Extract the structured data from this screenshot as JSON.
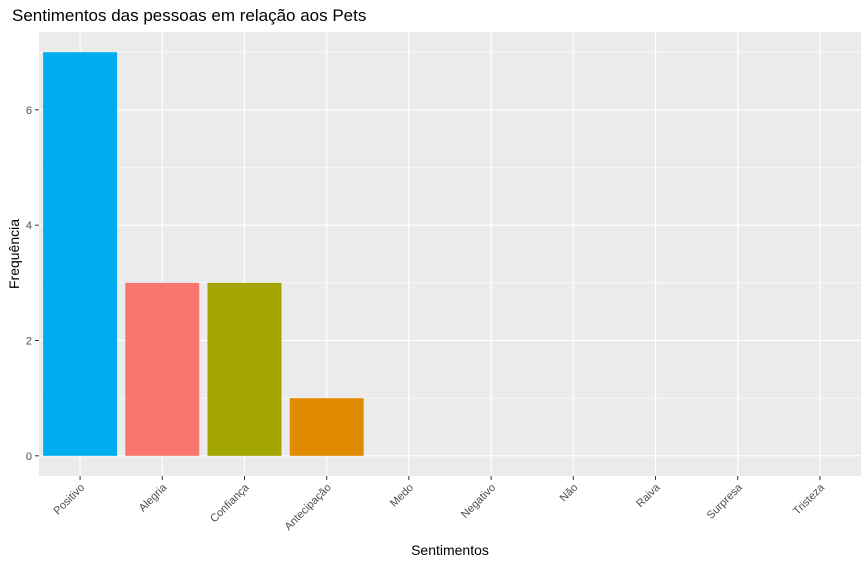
{
  "chart_data": {
    "type": "bar",
    "title": "Sentimentos das pessoas em relação aos Pets",
    "xlabel": "Sentimentos",
    "ylabel": "Frequência",
    "categories": [
      "Positivo",
      "Alegria",
      "Confiança",
      "Antecipação",
      "Medo",
      "Negativo",
      "Não",
      "Raiva",
      "Surpresa",
      "Tristeza"
    ],
    "values": [
      7,
      3,
      3,
      1,
      0,
      0,
      0,
      0,
      0,
      0
    ],
    "bar_colors": [
      "#00aeef",
      "#f8766d",
      "#a3a500",
      "#e08b00",
      "#ffffff",
      "#ffffff",
      "#ffffff",
      "#ffffff",
      "#ffffff",
      "#ffffff"
    ],
    "ylim": [
      -0.35,
      7.35
    ],
    "yticks": [
      0,
      2,
      4,
      6
    ],
    "grid": true,
    "panel_background": "#ebebeb",
    "grid_color": "#ffffff",
    "legend": "none"
  }
}
